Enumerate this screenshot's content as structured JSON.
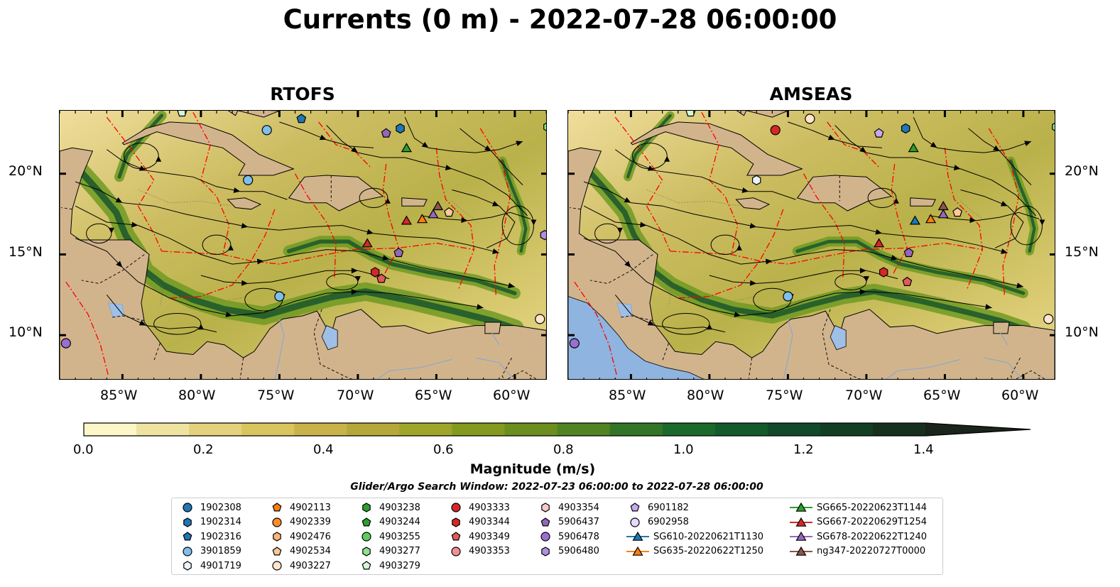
{
  "title": "Currents (0 m) - 2022-07-28 06:00:00",
  "panels": [
    {
      "name": "RTOFS"
    },
    {
      "name": "AMSEAS"
    }
  ],
  "lat_ticks": [
    "20°N",
    "15°N",
    "10°N"
  ],
  "lon_ticks": [
    "85°W",
    "80°W",
    "75°W",
    "70°W",
    "65°W",
    "60°W"
  ],
  "colorbar": {
    "label": "Magnitude (m/s)",
    "ticks": [
      "0.0",
      "0.2",
      "0.4",
      "0.6",
      "0.8",
      "1.0",
      "1.2",
      "1.4"
    ],
    "range": [
      0,
      1.6
    ],
    "extend": "max",
    "colors": [
      "#fdf7c7",
      "#efe3a1",
      "#e4d17c",
      "#d9c45e",
      "#c9b24a",
      "#b5a83a",
      "#9ea52b",
      "#84991f",
      "#6b8e1f",
      "#4f8420",
      "#337526",
      "#1c6a2b",
      "#145a2c",
      "#114a28",
      "#123e22",
      "#16301d",
      "#1a241a"
    ]
  },
  "search_window": "Glider/Argo Search Window: 2022-07-23 06:00:00 to 2022-07-28 06:00:00",
  "legend": [
    {
      "label": "1902308",
      "marker": "circle",
      "color": "#1f77b4"
    },
    {
      "label": "1902314",
      "marker": "hexagon",
      "color": "#1f77b4"
    },
    {
      "label": "1902316",
      "marker": "pentagon",
      "color": "#1f77b4"
    },
    {
      "label": "3901859",
      "marker": "circle",
      "color": "#7fbfea"
    },
    {
      "label": "4901719",
      "marker": "hexagon",
      "color": "#e8f3fc"
    },
    {
      "label": "4902113",
      "marker": "pentagon",
      "color": "#ff7f0e"
    },
    {
      "label": "4902339",
      "marker": "circle",
      "color": "#ff8c2a"
    },
    {
      "label": "4902476",
      "marker": "hexagon",
      "color": "#ffb478"
    },
    {
      "label": "4902534",
      "marker": "pentagon",
      "color": "#ffc896"
    },
    {
      "label": "4903227",
      "marker": "circle",
      "color": "#ffe6cc"
    },
    {
      "label": "4903238",
      "marker": "hexagon",
      "color": "#2ca02c"
    },
    {
      "label": "4903244",
      "marker": "pentagon",
      "color": "#2ca02c"
    },
    {
      "label": "4903255",
      "marker": "circle",
      "color": "#5ccf5c"
    },
    {
      "label": "4903277",
      "marker": "hexagon",
      "color": "#8fe08f"
    },
    {
      "label": "4903279",
      "marker": "pentagon",
      "color": "#d6f5d6"
    },
    {
      "label": "4903333",
      "marker": "circle",
      "color": "#d62728"
    },
    {
      "label": "4903344",
      "marker": "hexagon",
      "color": "#d62728"
    },
    {
      "label": "4903349",
      "marker": "pentagon",
      "color": "#e05a5a"
    },
    {
      "label": "4903353",
      "marker": "circle",
      "color": "#f09090"
    },
    {
      "label": "4903354",
      "marker": "hexagon",
      "color": "#f8c8c8"
    },
    {
      "label": "5906437",
      "marker": "pentagon",
      "color": "#9467bd"
    },
    {
      "label": "5906478",
      "marker": "circle",
      "color": "#9b6fd0"
    },
    {
      "label": "5906480",
      "marker": "hexagon",
      "color": "#b08ee0"
    },
    {
      "label": "6901182",
      "marker": "pentagon",
      "color": "#c9a8f0"
    },
    {
      "label": "6902958",
      "marker": "circle",
      "color": "#e8d8fb"
    },
    {
      "label": "SG610-20220621T1130",
      "marker": "triangle-line",
      "color": "#1f77b4"
    },
    {
      "label": "SG635-20220622T1250",
      "marker": "triangle-line",
      "color": "#ff7f0e"
    },
    {
      "label": "SG665-20220623T1144",
      "marker": "triangle-line",
      "color": "#2ca02c"
    },
    {
      "label": "SG667-20220629T1254",
      "marker": "triangle-line",
      "color": "#d62728"
    },
    {
      "label": "SG678-20220622T1240",
      "marker": "triangle-line",
      "color": "#9467bd"
    },
    {
      "label": "ng347-20220727T0000",
      "marker": "triangle-line",
      "color": "#8c564b"
    }
  ]
}
